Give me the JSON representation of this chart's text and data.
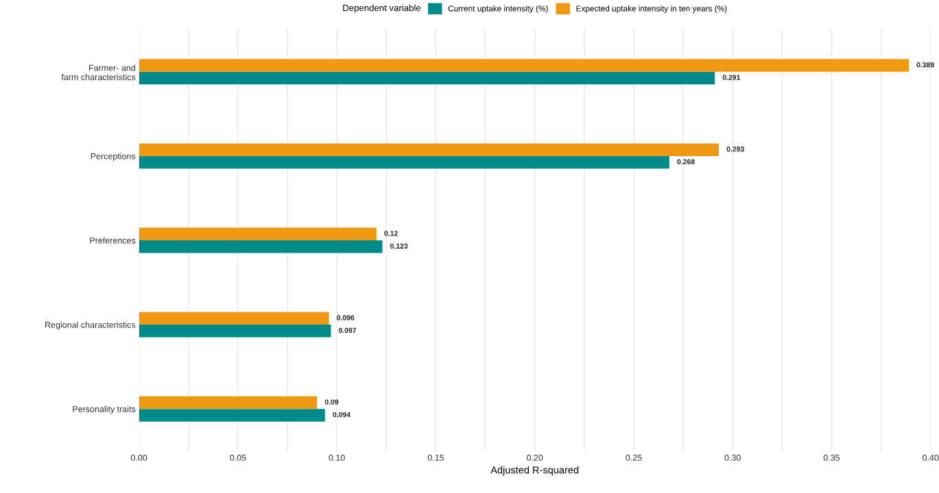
{
  "chart_data": {
    "type": "bar",
    "orientation": "horizontal",
    "xlabel": "Adjusted R-squared",
    "legend_title": "Dependent variable",
    "categories": [
      "Farmer- and\nfarm characteristics",
      "Perceptions",
      "Preferences",
      "Regional characteristics",
      "Personality traits"
    ],
    "series": [
      {
        "name": "Current uptake intensity (%)",
        "color": "#008b8b",
        "values": [
          0.291,
          0.268,
          0.123,
          0.097,
          0.094
        ]
      },
      {
        "name": "Expected uptake intensity in ten years (%)",
        "color": "#ef9811",
        "values": [
          0.389,
          0.293,
          0.12,
          0.096,
          0.09
        ]
      }
    ],
    "xlim": [
      0,
      0.4
    ],
    "xticks": [
      {
        "value": 0.0,
        "label": "0.00"
      },
      {
        "value": 0.025,
        "label": null
      },
      {
        "value": 0.05,
        "label": "0.05"
      },
      {
        "value": 0.075,
        "label": null
      },
      {
        "value": 0.1,
        "label": "0.10"
      },
      {
        "value": 0.125,
        "label": null
      },
      {
        "value": 0.15,
        "label": "0.15"
      },
      {
        "value": 0.175,
        "label": null
      },
      {
        "value": 0.2,
        "label": "0.20"
      },
      {
        "value": 0.225,
        "label": null
      },
      {
        "value": 0.25,
        "label": "0.25"
      },
      {
        "value": 0.275,
        "label": null
      },
      {
        "value": 0.3,
        "label": "0.30"
      },
      {
        "value": 0.325,
        "label": null
      },
      {
        "value": 0.35,
        "label": "0.35"
      },
      {
        "value": 0.375,
        "label": null
      },
      {
        "value": 0.4,
        "label": "0.40"
      }
    ],
    "grid": "x",
    "legend": "top",
    "data_labels": true
  }
}
